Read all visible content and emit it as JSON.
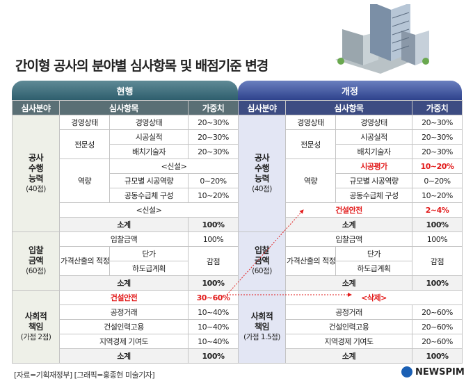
{
  "title": "간이형 공사의 분야별 심사항목 및 배점기준 변경",
  "current": {
    "header": "현행",
    "col_area": "심사분야",
    "col_item": "심사항목",
    "col_weight": "가중치",
    "cap": {
      "area": [
        "공사",
        "수행",
        "능력"
      ],
      "area_sub": "(40점)",
      "prof": "전문성",
      "prof_items": [
        {
          "label": "경영상태",
          "sub": "경영상태",
          "weight": "20~30%"
        },
        {
          "sub": "시공실적",
          "weight": "20~30%"
        },
        {
          "sub": "배치기술자",
          "weight": "20~30%"
        }
      ],
      "ability": "역량",
      "ability_new": "<신설>",
      "ability_items": [
        {
          "sub": "규모별 시공역량",
          "weight": "0~20%"
        },
        {
          "sub": "공동수급체 구성",
          "weight": "10~20%"
        }
      ],
      "new_row": "<신설>",
      "sum_label": "소계",
      "sum_value": "100%"
    },
    "bid": {
      "area": [
        "입찰",
        "금액"
      ],
      "area_sub": "(60점)",
      "bid_amount": "입찰금액",
      "bid_amount_weight": "100%",
      "price_label": "가격산출의 적정성",
      "unit_price": "단가",
      "subcontract": "하도급계획",
      "reduction": "감점",
      "sum_label": "소계",
      "sum_value": "100%"
    },
    "social": {
      "area": [
        "사회적",
        "책임"
      ],
      "area_sub": "(가점 2점)",
      "items": [
        {
          "label": "건설안전",
          "weight": "30~60%"
        },
        {
          "label": "공정거래",
          "weight": "10~40%"
        },
        {
          "label": "건설인력고용",
          "weight": "10~40%"
        },
        {
          "label": "지역경제 기여도",
          "weight": "10~40%"
        }
      ],
      "sum_label": "소계",
      "sum_value": "100%"
    }
  },
  "revised": {
    "header": "개정",
    "col_area": "심사분야",
    "col_item": "심사항목",
    "col_weight": "가중치",
    "cap": {
      "area": [
        "공사",
        "수행",
        "능력"
      ],
      "area_sub": "(40점)",
      "prof": "전문성",
      "prof_items": [
        {
          "label": "경영상태",
          "sub": "경영상태",
          "weight": "20~30%"
        },
        {
          "sub": "시공실적",
          "weight": "20~30%"
        },
        {
          "sub": "배치기술자",
          "weight": "20~30%"
        }
      ],
      "ability": "역량",
      "ability_items": [
        {
          "sub": "시공평가",
          "weight": "10~20%"
        },
        {
          "sub": "규모별 시공역량",
          "weight": "0~20%"
        },
        {
          "sub": "공동수급체 구성",
          "weight": "10~20%"
        }
      ],
      "safety_label": "건설안전",
      "safety_weight": "2~4%",
      "sum_label": "소계",
      "sum_value": "100%"
    },
    "bid": {
      "area": [
        "입찰",
        "금액"
      ],
      "area_sub": "(60점)",
      "bid_amount": "입찰금액",
      "bid_amount_weight": "100%",
      "price_label": "가격산출의 적정성",
      "unit_price": "단가",
      "subcontract": "하도급계획",
      "reduction": "감점",
      "sum_label": "소계",
      "sum_value": "100%"
    },
    "social": {
      "area": [
        "사회적",
        "책임"
      ],
      "area_sub": "(가점 1.5점)",
      "deleted": "<삭제>",
      "items": [
        {
          "label": "공정거래",
          "weight": "20~60%"
        },
        {
          "label": "건설인력고용",
          "weight": "20~60%"
        },
        {
          "label": "지역경제 기여도",
          "weight": "20~60%"
        }
      ],
      "sum_label": "소계",
      "sum_value": "100%"
    }
  },
  "footer": "[자료=기획재정부] [그래픽=홍종현 미술기자]",
  "logo_text": "NEWSPIM",
  "colors": {
    "highlight": "#e21b1b",
    "current_header": "#2e5e6d",
    "revised_header": "#2e428c"
  }
}
